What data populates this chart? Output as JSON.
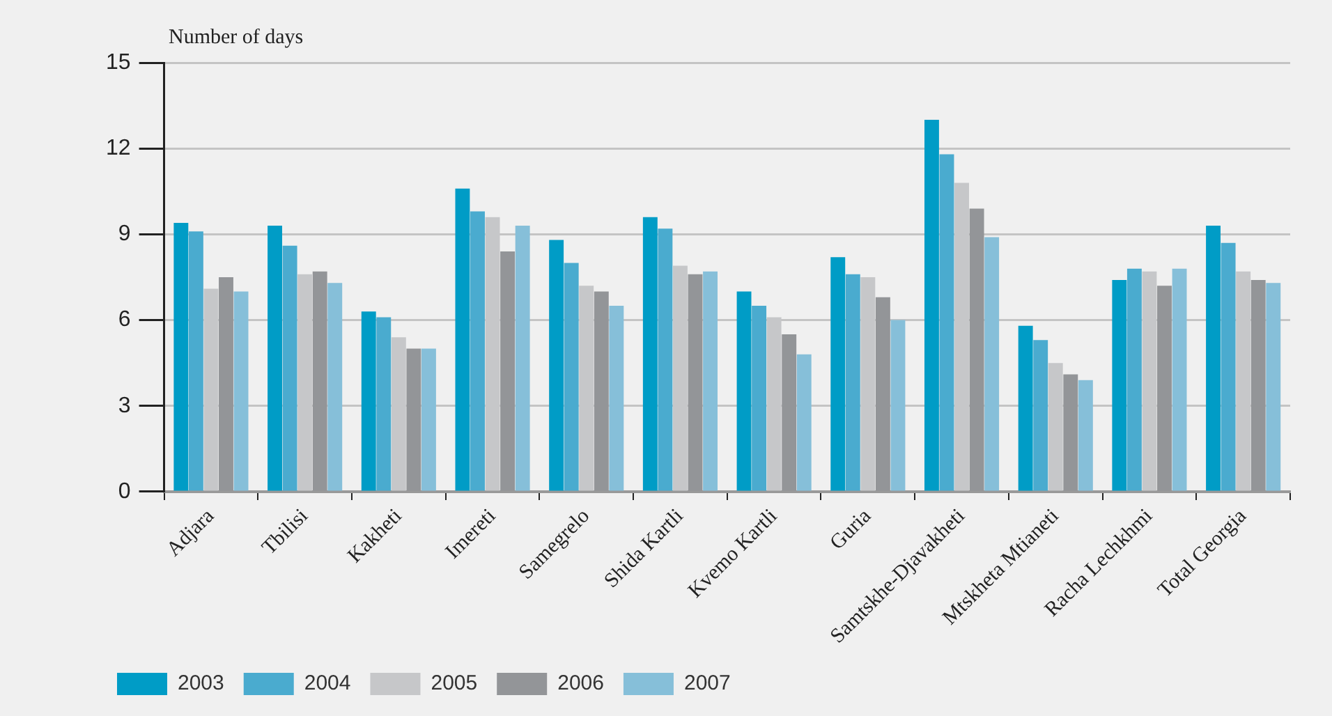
{
  "chart_data": {
    "type": "bar",
    "ylabel": "Number of days",
    "categories": [
      "Adjara",
      "Tbilisi",
      "Kakheti",
      "Imereti",
      "Samegrelo",
      "Shida Kartli",
      "Kvemo Kartli",
      "Guria",
      "Samtskhe-Djavakheti",
      "Mtskheta Mtianeti",
      "Racha Lechkhmi",
      "Total Georgia"
    ],
    "series": [
      {
        "name": "2003",
        "color": "#009cc6",
        "values": [
          9.4,
          9.3,
          6.3,
          10.6,
          8.8,
          9.6,
          7.0,
          8.2,
          13.0,
          5.8,
          7.4,
          9.3
        ]
      },
      {
        "name": "2004",
        "color": "#4aabcf",
        "values": [
          9.1,
          8.6,
          6.1,
          9.8,
          8.0,
          9.2,
          6.5,
          7.6,
          11.8,
          5.3,
          7.8,
          8.7
        ]
      },
      {
        "name": "2005",
        "color": "#c6c7c9",
        "values": [
          7.1,
          7.6,
          5.4,
          9.6,
          7.2,
          7.9,
          6.1,
          7.5,
          10.8,
          4.5,
          7.7,
          7.7
        ]
      },
      {
        "name": "2006",
        "color": "#939598",
        "values": [
          7.5,
          7.7,
          5.0,
          8.4,
          7.0,
          7.6,
          5.5,
          6.8,
          9.9,
          4.1,
          7.2,
          7.4
        ]
      },
      {
        "name": "2007",
        "color": "#86bfd9",
        "values": [
          7.0,
          7.3,
          5.0,
          9.3,
          6.5,
          7.7,
          4.8,
          6.0,
          8.9,
          3.9,
          7.8,
          7.3
        ]
      }
    ],
    "ylim": [
      0,
      15
    ],
    "yticks": [
      0,
      3,
      6,
      9,
      12,
      15
    ],
    "grid": "y",
    "legend": "bottom left"
  }
}
